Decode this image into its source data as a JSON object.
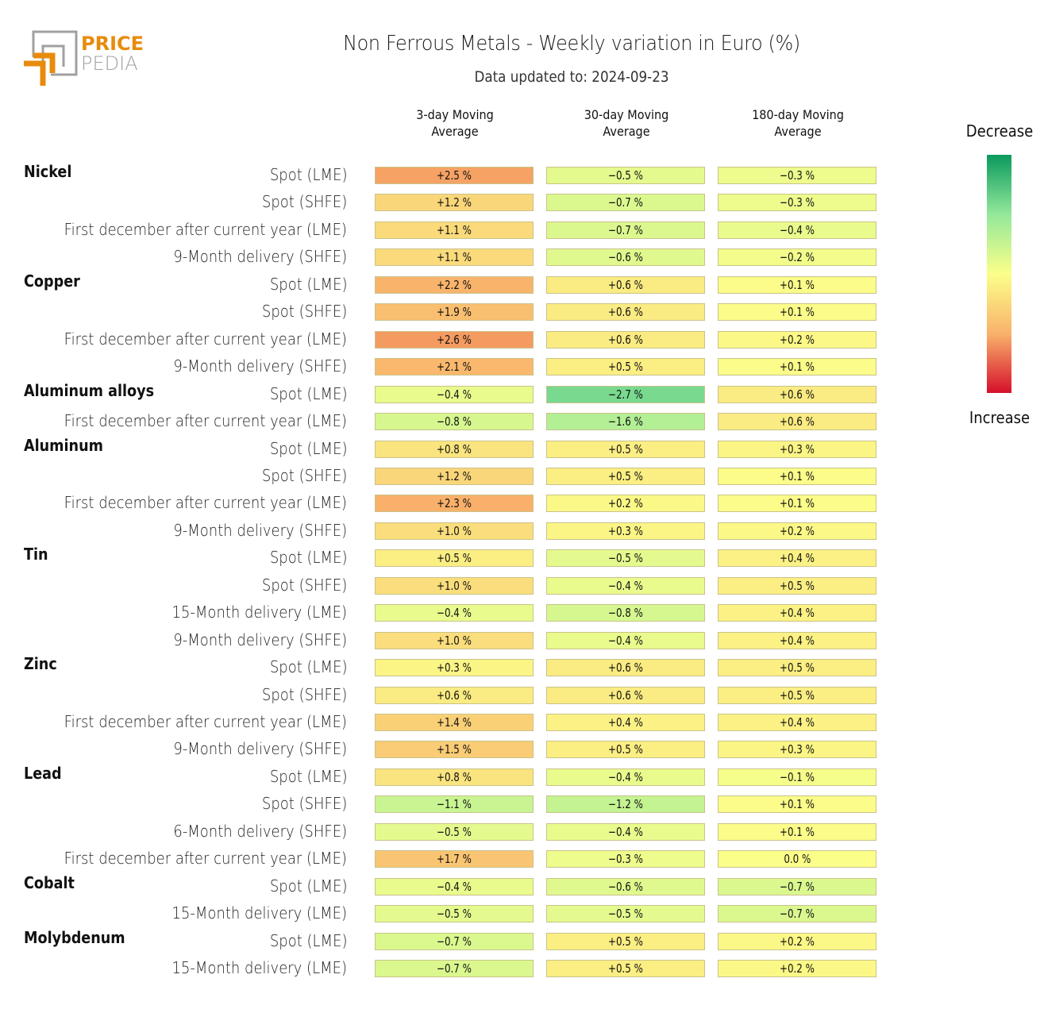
{
  "logo": {
    "line1": "PRICE",
    "line2": "PEDIA",
    "accent_color": "#e88b0c",
    "gray_color": "#a0a0a0"
  },
  "chart_data": {
    "type": "heatmap",
    "title": "Non Ferrous Metals - Weekly variation in Euro (%)",
    "subtitle": "Data updated to: 2024-09-23",
    "columns": [
      "3-day Moving Average",
      "30-day Moving Average",
      "180-day Moving Average"
    ],
    "column_lines": [
      [
        "3-day Moving",
        "Average"
      ],
      [
        "30-day Moving",
        "Average"
      ],
      [
        "180-day Moving",
        "Average"
      ]
    ],
    "legend": {
      "top": "Decrease",
      "bottom": "Increase",
      "colors": [
        "#0a9a5e",
        "#93e89a",
        "#fbff8a",
        "#f9b26b",
        "#d6102b"
      ]
    },
    "color_scale_range": [
      -10,
      10
    ],
    "groups": [
      {
        "name": "Nickel",
        "rows": [
          {
            "label": "Spot (LME)",
            "values": [
              2.5,
              -0.5,
              -0.3
            ]
          },
          {
            "label": "Spot (SHFE)",
            "values": [
              1.2,
              -0.7,
              -0.3
            ]
          },
          {
            "label": "First december after current year (LME)",
            "values": [
              1.1,
              -0.7,
              -0.4
            ]
          },
          {
            "label": "9-Month delivery (SHFE)",
            "values": [
              1.1,
              -0.6,
              -0.2
            ]
          }
        ]
      },
      {
        "name": "Copper",
        "rows": [
          {
            "label": "Spot (LME)",
            "values": [
              2.2,
              0.6,
              0.1
            ]
          },
          {
            "label": "Spot (SHFE)",
            "values": [
              1.9,
              0.6,
              0.1
            ]
          },
          {
            "label": "First december after current year (LME)",
            "values": [
              2.6,
              0.6,
              0.2
            ]
          },
          {
            "label": "9-Month delivery (SHFE)",
            "values": [
              2.1,
              0.5,
              0.1
            ]
          }
        ]
      },
      {
        "name": "Aluminum alloys",
        "rows": [
          {
            "label": "Spot (LME)",
            "values": [
              -0.4,
              -2.7,
              0.6
            ]
          },
          {
            "label": "First december after current year (LME)",
            "values": [
              -0.8,
              -1.6,
              0.6
            ]
          }
        ]
      },
      {
        "name": "Aluminum",
        "rows": [
          {
            "label": "Spot (LME)",
            "values": [
              0.8,
              0.5,
              0.3
            ]
          },
          {
            "label": "Spot (SHFE)",
            "values": [
              1.2,
              0.5,
              0.1
            ]
          },
          {
            "label": "First december after current year (LME)",
            "values": [
              2.3,
              0.2,
              0.1
            ]
          },
          {
            "label": "9-Month delivery (SHFE)",
            "values": [
              1.0,
              0.3,
              0.2
            ]
          }
        ]
      },
      {
        "name": "Tin",
        "rows": [
          {
            "label": "Spot (LME)",
            "values": [
              0.5,
              -0.5,
              0.4
            ]
          },
          {
            "label": "Spot (SHFE)",
            "values": [
              1.0,
              -0.4,
              0.5
            ]
          },
          {
            "label": "15-Month delivery (LME)",
            "values": [
              -0.4,
              -0.8,
              0.4
            ]
          },
          {
            "label": "9-Month delivery (SHFE)",
            "values": [
              1.0,
              -0.4,
              0.4
            ]
          }
        ]
      },
      {
        "name": "Zinc",
        "rows": [
          {
            "label": "Spot (LME)",
            "values": [
              0.3,
              0.6,
              0.5
            ]
          },
          {
            "label": "Spot (SHFE)",
            "values": [
              0.6,
              0.6,
              0.5
            ]
          },
          {
            "label": "First december after current year (LME)",
            "values": [
              1.4,
              0.4,
              0.4
            ]
          },
          {
            "label": "9-Month delivery (SHFE)",
            "values": [
              1.5,
              0.5,
              0.3
            ]
          }
        ]
      },
      {
        "name": "Lead",
        "rows": [
          {
            "label": "Spot (LME)",
            "values": [
              0.8,
              -0.4,
              -0.1
            ]
          },
          {
            "label": "Spot (SHFE)",
            "values": [
              -1.1,
              -1.2,
              0.1
            ]
          },
          {
            "label": "6-Month delivery (SHFE)",
            "values": [
              -0.5,
              -0.4,
              0.1
            ]
          },
          {
            "label": "First december after current year (LME)",
            "values": [
              1.7,
              -0.3,
              0.0
            ]
          }
        ]
      },
      {
        "name": "Cobalt",
        "rows": [
          {
            "label": "Spot (LME)",
            "values": [
              -0.4,
              -0.6,
              -0.7
            ]
          },
          {
            "label": "15-Month delivery (LME)",
            "values": [
              -0.5,
              -0.5,
              -0.7
            ]
          }
        ]
      },
      {
        "name": "Molybdenum",
        "rows": [
          {
            "label": "Spot (LME)",
            "values": [
              -0.7,
              0.5,
              0.2
            ]
          },
          {
            "label": "15-Month delivery (LME)",
            "values": [
              -0.7,
              0.5,
              0.2
            ]
          }
        ]
      }
    ],
    "value_suffix": " %"
  }
}
